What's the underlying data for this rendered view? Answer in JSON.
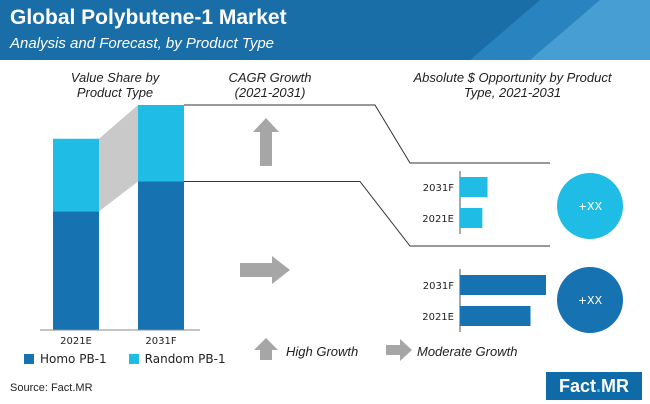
{
  "header": {
    "title": "Global Polybutene-1 Market",
    "subtitle": "Analysis and Forecast, by Product Type"
  },
  "sections": {
    "value_share": "Value Share by Product Type",
    "cagr": "CAGR Growth (2021-2031)",
    "opportunity": "Absolute $ Opportunity by Product Type, 2021-2031"
  },
  "growth_labels": {
    "high": "High Growth",
    "moderate": "Moderate Growth"
  },
  "source": "Source: Fact.MR",
  "logo": {
    "text_a": "Fact",
    "text_dot": ".",
    "text_b": "MR"
  },
  "colors": {
    "header": "#1a6ea8",
    "homo": "#1772b2",
    "random": "#1fbde6",
    "connector": "#c9c9c9",
    "arrow": "#a6a6a6"
  },
  "chart_data": [
    {
      "type": "bar",
      "stacked": true,
      "categories": [
        "2021E",
        "2031F"
      ],
      "series": [
        {
          "name": "Homo PB-1",
          "values": [
            62,
            66
          ]
        },
        {
          "name": "Random PB-1",
          "values": [
            38,
            34
          ]
        }
      ],
      "relative_heights": [
        0.85,
        1.0
      ],
      "legend": "bottom"
    },
    {
      "type": "bar",
      "orientation": "horizontal",
      "group": "Random PB-1",
      "categories": [
        "2031F",
        "2021E"
      ],
      "values": [
        0.32,
        0.26
      ],
      "badge": "+XX"
    },
    {
      "type": "bar",
      "orientation": "horizontal",
      "group": "Homo PB-1",
      "categories": [
        "2031F",
        "2021E"
      ],
      "values": [
        1.0,
        0.82
      ],
      "badge": "+XX"
    }
  ]
}
